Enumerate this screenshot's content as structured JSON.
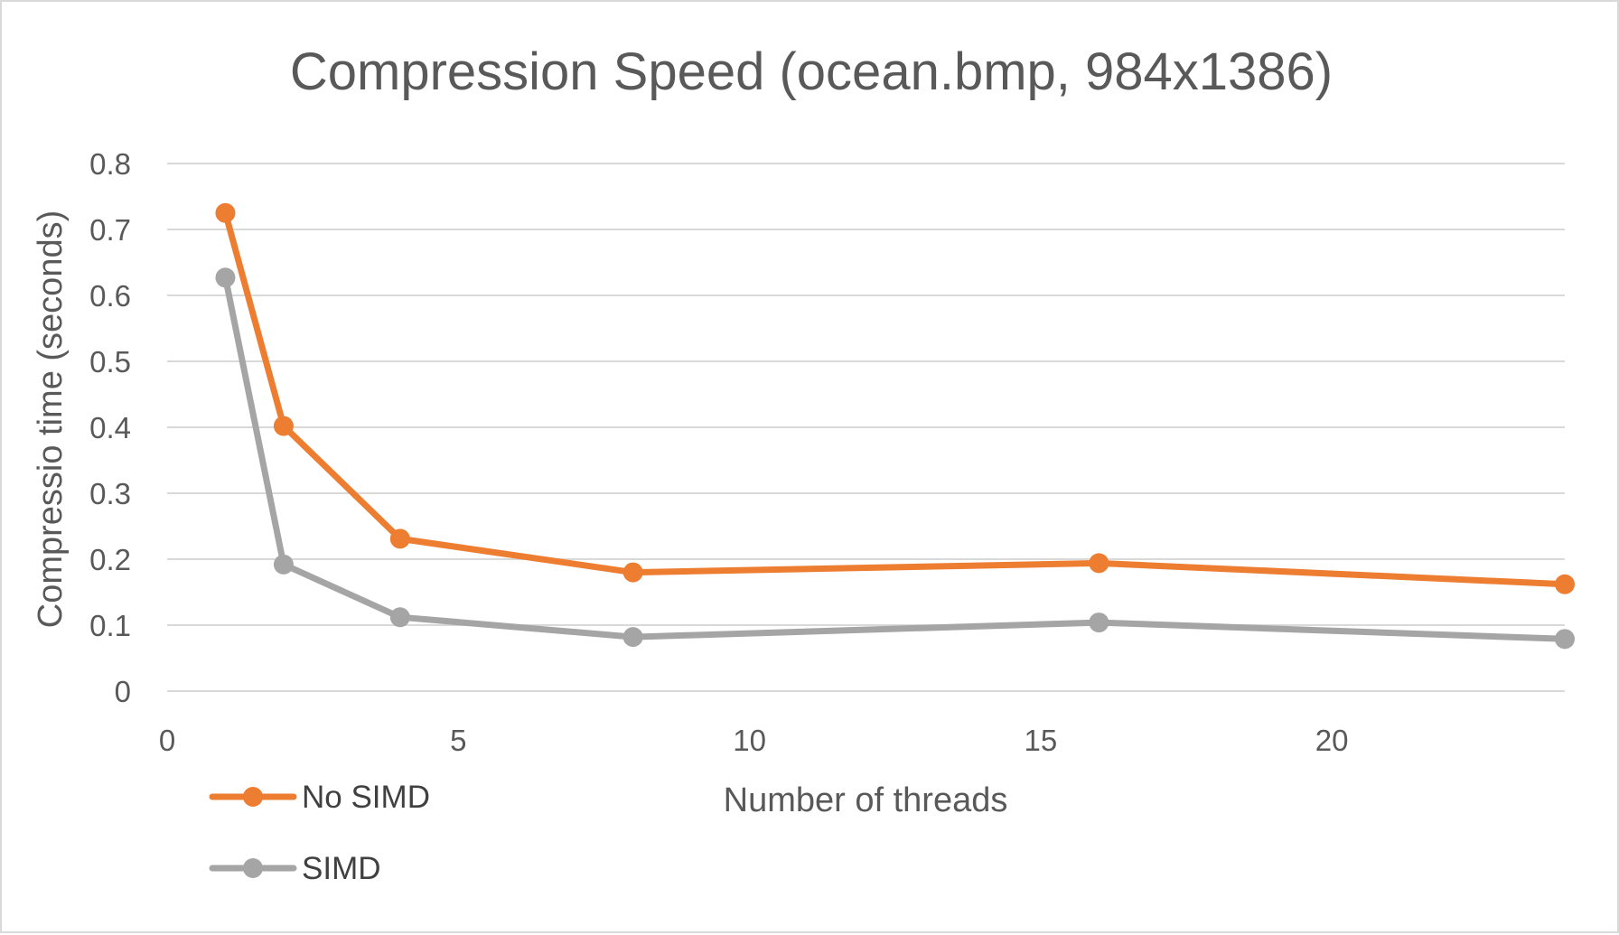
{
  "chart_data": {
    "type": "scatter",
    "title": "Compression Speed (ocean.bmp, 984x1386)",
    "xlabel": "Number of threads",
    "ylabel": "Compressio time (seconds)",
    "xlim": [
      0,
      24
    ],
    "ylim": [
      0,
      0.8
    ],
    "x_ticks": [
      "0",
      "5",
      "10",
      "15",
      "20"
    ],
    "x_tick_values": [
      0,
      5,
      10,
      15,
      20
    ],
    "y_ticks": [
      "0",
      "0.1",
      "0.2",
      "0.3",
      "0.4",
      "0.5",
      "0.6",
      "0.7",
      "0.8"
    ],
    "y_tick_values": [
      0,
      0.1,
      0.2,
      0.3,
      0.4,
      0.5,
      0.6,
      0.7,
      0.8
    ],
    "grid": "horizontal",
    "legend_position": "bottom-left",
    "series": [
      {
        "name": "No SIMD",
        "color": "#ed7d31",
        "x": [
          1,
          2,
          4,
          8,
          16,
          24
        ],
        "y": [
          0.725,
          0.402,
          0.231,
          0.18,
          0.194,
          0.162
        ]
      },
      {
        "name": "SIMD",
        "color": "#a5a5a5",
        "x": [
          1,
          2,
          4,
          8,
          16,
          24
        ],
        "y": [
          0.627,
          0.192,
          0.112,
          0.082,
          0.104,
          0.079
        ]
      }
    ]
  }
}
